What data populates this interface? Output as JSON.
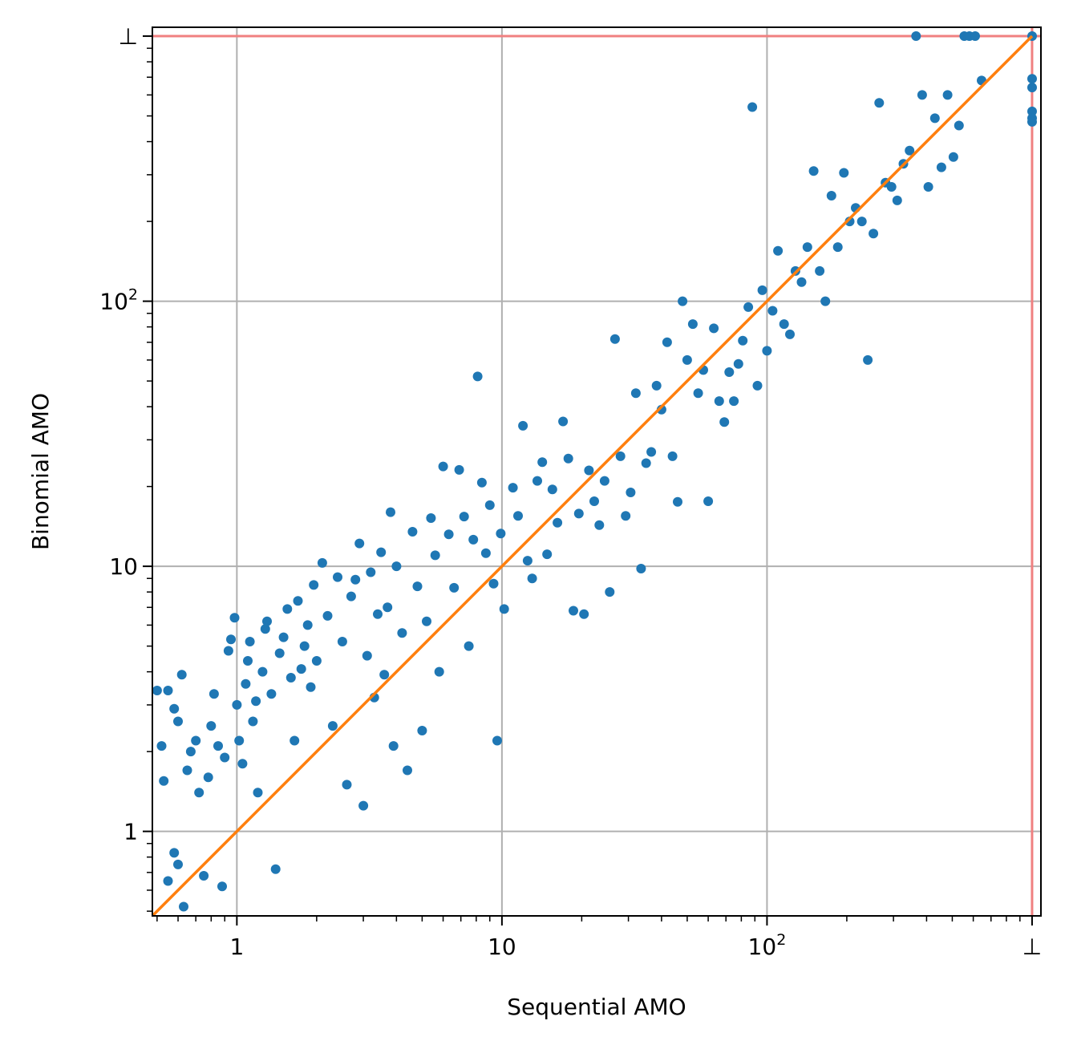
{
  "chart_data": {
    "type": "scatter",
    "title": "",
    "xlabel": "Sequential AMO",
    "ylabel": "Binomial AMO",
    "xscale": "log",
    "yscale": "log",
    "xlim": [
      0.48,
      1080
    ],
    "ylim": [
      0.48,
      1080
    ],
    "grid": true,
    "legend": "none",
    "timeout_value": 1000,
    "timeout_label": "⊥",
    "x_ticks": [
      {
        "value": 1,
        "label": "1"
      },
      {
        "value": 10,
        "label": "10"
      },
      {
        "value": 100,
        "label": "10",
        "sup": "2"
      },
      {
        "value": 1000,
        "label": "⊥"
      }
    ],
    "y_ticks": [
      {
        "value": 1,
        "label": "1"
      },
      {
        "value": 10,
        "label": "10"
      },
      {
        "value": 100,
        "label": "10",
        "sup": "2"
      },
      {
        "value": 1000,
        "label": "⊥"
      }
    ],
    "colors": {
      "points": "#1f77b4",
      "diagonal": "#ff7f0e",
      "timeout_lines": "#f08080",
      "grid": "#b0b0b0"
    },
    "series": [
      {
        "diagonal": [
          [
            0.48,
            0.48
          ],
          [
            1000,
            1000
          ]
        ],
        "points": [
          [
            0.5,
            3.4
          ],
          [
            0.52,
            2.1
          ],
          [
            0.53,
            1.55
          ],
          [
            0.55,
            0.65
          ],
          [
            0.58,
            0.83
          ],
          [
            0.6,
            0.75
          ],
          [
            0.63,
            0.52
          ],
          [
            0.55,
            3.4
          ],
          [
            0.58,
            2.9
          ],
          [
            0.6,
            2.6
          ],
          [
            0.62,
            3.9
          ],
          [
            0.65,
            1.7
          ],
          [
            0.67,
            2.0
          ],
          [
            0.7,
            2.2
          ],
          [
            0.72,
            1.4
          ],
          [
            0.75,
            0.68
          ],
          [
            0.78,
            1.6
          ],
          [
            0.8,
            2.5
          ],
          [
            0.82,
            3.3
          ],
          [
            0.85,
            2.1
          ],
          [
            0.88,
            0.62
          ],
          [
            0.9,
            1.9
          ],
          [
            0.93,
            4.8
          ],
          [
            0.95,
            5.3
          ],
          [
            0.98,
            6.4
          ],
          [
            1.0,
            3.0
          ],
          [
            1.02,
            2.2
          ],
          [
            1.05,
            1.8
          ],
          [
            1.08,
            3.6
          ],
          [
            1.1,
            4.4
          ],
          [
            1.12,
            5.2
          ],
          [
            1.15,
            2.6
          ],
          [
            1.18,
            3.1
          ],
          [
            1.2,
            1.4
          ],
          [
            1.25,
            4.0
          ],
          [
            1.28,
            5.8
          ],
          [
            1.3,
            6.2
          ],
          [
            1.35,
            3.3
          ],
          [
            1.4,
            0.72
          ],
          [
            1.45,
            4.7
          ],
          [
            1.5,
            5.4
          ],
          [
            1.55,
            6.9
          ],
          [
            1.6,
            3.8
          ],
          [
            1.65,
            2.2
          ],
          [
            1.7,
            7.4
          ],
          [
            1.75,
            4.1
          ],
          [
            1.8,
            5.0
          ],
          [
            1.85,
            6.0
          ],
          [
            1.9,
            3.5
          ],
          [
            1.95,
            8.5
          ],
          [
            2.0,
            4.4
          ],
          [
            2.1,
            10.3
          ],
          [
            2.2,
            6.5
          ],
          [
            2.3,
            2.5
          ],
          [
            2.4,
            9.1
          ],
          [
            2.5,
            5.2
          ],
          [
            2.6,
            1.5
          ],
          [
            2.7,
            7.7
          ],
          [
            2.8,
            8.9
          ],
          [
            2.9,
            12.2
          ],
          [
            3.0,
            1.25
          ],
          [
            3.1,
            4.6
          ],
          [
            3.2,
            9.5
          ],
          [
            3.3,
            3.2
          ],
          [
            3.4,
            6.6
          ],
          [
            3.5,
            11.3
          ],
          [
            3.6,
            3.9
          ],
          [
            3.7,
            7.0
          ],
          [
            3.8,
            16.0
          ],
          [
            3.9,
            2.1
          ],
          [
            4.0,
            10.0
          ],
          [
            4.2,
            5.6
          ],
          [
            4.4,
            1.7
          ],
          [
            4.6,
            13.5
          ],
          [
            4.8,
            8.4
          ],
          [
            5.0,
            2.4
          ],
          [
            5.2,
            6.2
          ],
          [
            5.4,
            15.2
          ],
          [
            5.6,
            11.0
          ],
          [
            5.8,
            4.0
          ],
          [
            6.0,
            23.8
          ],
          [
            6.3,
            13.2
          ],
          [
            6.6,
            8.3
          ],
          [
            6.9,
            23.1
          ],
          [
            7.2,
            15.4
          ],
          [
            7.5,
            5.0
          ],
          [
            7.8,
            12.6
          ],
          [
            8.1,
            52.0
          ],
          [
            8.4,
            20.7
          ],
          [
            8.7,
            11.2
          ],
          [
            9.0,
            17.0
          ],
          [
            9.3,
            8.6
          ],
          [
            9.6,
            2.2
          ],
          [
            9.9,
            13.3
          ],
          [
            10.2,
            6.9
          ],
          [
            11.0,
            19.8
          ],
          [
            11.5,
            15.5
          ],
          [
            12.0,
            33.9
          ],
          [
            12.5,
            10.5
          ],
          [
            13.0,
            9.0
          ],
          [
            13.6,
            21.0
          ],
          [
            14.2,
            24.7
          ],
          [
            14.8,
            11.1
          ],
          [
            15.5,
            19.5
          ],
          [
            16.2,
            14.6
          ],
          [
            17.0,
            35.2
          ],
          [
            17.8,
            25.5
          ],
          [
            18.6,
            6.8
          ],
          [
            19.5,
            15.8
          ],
          [
            20.4,
            6.6
          ],
          [
            21.3,
            23.0
          ],
          [
            22.3,
            17.6
          ],
          [
            23.3,
            14.3
          ],
          [
            24.4,
            21.0
          ],
          [
            25.5,
            8.0
          ],
          [
            26.7,
            72.0
          ],
          [
            28.0,
            26.0
          ],
          [
            29.3,
            15.5
          ],
          [
            30.6,
            19.0
          ],
          [
            32.0,
            45.0
          ],
          [
            33.5,
            9.8
          ],
          [
            35.0,
            24.5
          ],
          [
            36.6,
            27.0
          ],
          [
            38.3,
            48.0
          ],
          [
            40.0,
            39.0
          ],
          [
            42.0,
            70.0
          ],
          [
            44.0,
            26.0
          ],
          [
            46.0,
            17.5
          ],
          [
            48.0,
            100.0
          ],
          [
            50.0,
            60.0
          ],
          [
            52.5,
            82.0
          ],
          [
            55.0,
            45.0
          ],
          [
            57.5,
            55.0
          ],
          [
            60.0,
            17.6
          ],
          [
            63.0,
            79.0
          ],
          [
            66.0,
            42.0
          ],
          [
            69.0,
            35.0
          ],
          [
            72.0,
            54.0
          ],
          [
            75.0,
            42.0
          ],
          [
            78.0,
            58.0
          ],
          [
            81.0,
            71.0
          ],
          [
            85.0,
            95.0
          ],
          [
            88.0,
            540.0
          ],
          [
            92.0,
            48.0
          ],
          [
            96.0,
            110.0
          ],
          [
            100.0,
            65.0
          ],
          [
            105.0,
            92.0
          ],
          [
            110.0,
            155.0
          ],
          [
            116.0,
            82.0
          ],
          [
            122.0,
            75.0
          ],
          [
            128.0,
            130.0
          ],
          [
            135.0,
            118.0
          ],
          [
            142.0,
            160.0
          ],
          [
            150.0,
            310.0
          ],
          [
            158.0,
            130.0
          ],
          [
            166.0,
            100.0
          ],
          [
            175.0,
            250.0
          ],
          [
            185.0,
            160.0
          ],
          [
            195.0,
            305.0
          ],
          [
            205.0,
            200.0
          ],
          [
            216.0,
            225.0
          ],
          [
            228.0,
            200.0
          ],
          [
            240.0,
            60.0
          ],
          [
            252.0,
            180.0
          ],
          [
            265.0,
            560.0
          ],
          [
            280.0,
            280.0
          ],
          [
            295.0,
            270.0
          ],
          [
            310.0,
            240.0
          ],
          [
            327.0,
            330.0
          ],
          [
            345.0,
            370.0
          ],
          [
            365.0,
            1000.0
          ],
          [
            385.0,
            600.0
          ],
          [
            406.0,
            270.0
          ],
          [
            430.0,
            490.0
          ],
          [
            455.0,
            320.0
          ],
          [
            480.0,
            600.0
          ],
          [
            505.0,
            350.0
          ],
          [
            530.0,
            460.0
          ],
          [
            555.0,
            1000.0
          ],
          [
            580.0,
            1000.0
          ],
          [
            610.0,
            1000.0
          ],
          [
            645.0,
            680.0
          ],
          [
            1000.0,
            1000.0
          ],
          [
            1000.0,
            690.0
          ],
          [
            1000.0,
            640.0
          ],
          [
            1000.0,
            520.0
          ],
          [
            1000.0,
            490.0
          ],
          [
            1000.0,
            475.0
          ]
        ]
      }
    ]
  }
}
